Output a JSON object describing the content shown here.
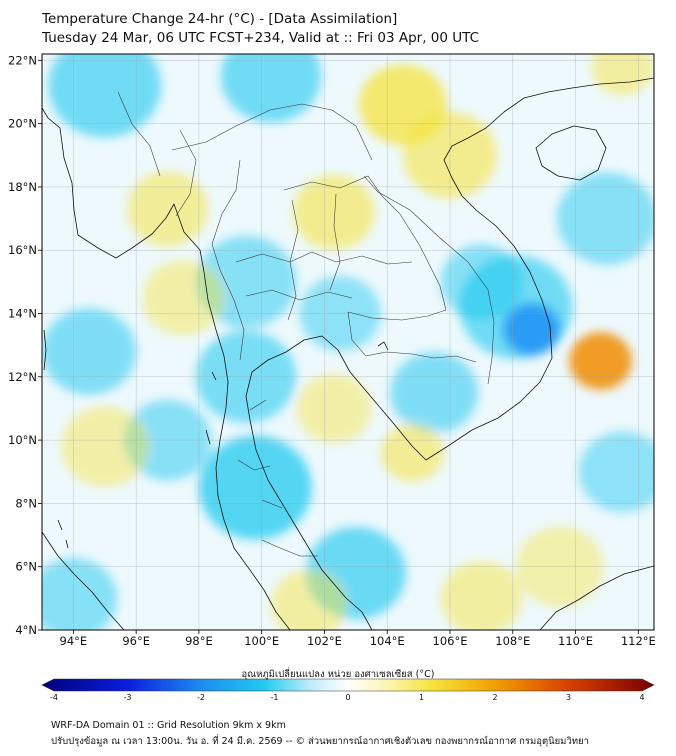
{
  "header": {
    "title_line1": "Temperature Change 24-hr (°C) - [Data Assimilation]",
    "title_line2": "Tuesday 24 Mar, 06 UTC FCST+234, Valid at :: Fri 03 Apr, 00 UTC"
  },
  "map": {
    "lat_labels": [
      "22°N",
      "20°N",
      "18°N",
      "16°N",
      "14°N",
      "12°N",
      "10°N",
      "8°N",
      "6°N",
      "4°N"
    ],
    "lon_labels": [
      "94°E",
      "96°E",
      "98°E",
      "100°E",
      "102°E",
      "104°E",
      "106°E",
      "108°E",
      "110°E",
      "112°E"
    ],
    "extent": {
      "lon_min": 93.0,
      "lon_max": 112.5,
      "lat_min": 4.0,
      "lat_max": 22.2
    },
    "anomalies": [
      {
        "lon": 108.6,
        "lat": 13.5,
        "value": -2.0,
        "r": 0.9
      },
      {
        "lon": 108.1,
        "lat": 14.2,
        "value": -1.1,
        "r": 1.8
      },
      {
        "lon": 99.8,
        "lat": 8.5,
        "value": -1.5,
        "r": 1.8
      },
      {
        "lon": 99.5,
        "lat": 12.0,
        "value": -1.0,
        "r": 1.6
      },
      {
        "lon": 99.5,
        "lat": 15.0,
        "value": -0.8,
        "r": 1.6
      },
      {
        "lon": 95.0,
        "lat": 21.2,
        "value": -1.1,
        "r": 1.8
      },
      {
        "lon": 100.3,
        "lat": 21.5,
        "value": -1.1,
        "r": 1.6
      },
      {
        "lon": 94.5,
        "lat": 12.8,
        "value": -0.9,
        "r": 1.5
      },
      {
        "lon": 97.0,
        "lat": 10.0,
        "value": -0.8,
        "r": 1.4
      },
      {
        "lon": 103.0,
        "lat": 5.8,
        "value": -1.2,
        "r": 1.6
      },
      {
        "lon": 102.5,
        "lat": 14.0,
        "value": -0.7,
        "r": 1.3
      },
      {
        "lon": 105.5,
        "lat": 11.5,
        "value": -0.9,
        "r": 1.4
      },
      {
        "lon": 111.0,
        "lat": 17.0,
        "value": -0.8,
        "r": 1.6
      },
      {
        "lon": 111.5,
        "lat": 9.0,
        "value": -0.7,
        "r": 1.4
      },
      {
        "lon": 107.0,
        "lat": 15.0,
        "value": -0.8,
        "r": 1.3
      },
      {
        "lon": 94.0,
        "lat": 5.0,
        "value": -0.8,
        "r": 1.4
      },
      {
        "lon": 110.8,
        "lat": 12.5,
        "value": 2.0,
        "r": 1.0
      },
      {
        "lon": 104.5,
        "lat": 20.6,
        "value": 1.5,
        "r": 1.4
      },
      {
        "lon": 106.0,
        "lat": 19.0,
        "value": 1.0,
        "r": 1.5
      },
      {
        "lon": 102.3,
        "lat": 17.2,
        "value": 1.0,
        "r": 1.3
      },
      {
        "lon": 97.0,
        "lat": 17.3,
        "value": 0.8,
        "r": 1.3
      },
      {
        "lon": 104.8,
        "lat": 9.6,
        "value": 0.9,
        "r": 1.0
      },
      {
        "lon": 102.3,
        "lat": 11.0,
        "value": 0.6,
        "r": 1.2
      },
      {
        "lon": 97.5,
        "lat": 14.5,
        "value": 0.6,
        "r": 1.3
      },
      {
        "lon": 95.0,
        "lat": 9.8,
        "value": 0.6,
        "r": 1.4
      },
      {
        "lon": 101.5,
        "lat": 4.8,
        "value": 0.7,
        "r": 1.2
      },
      {
        "lon": 107.0,
        "lat": 5.0,
        "value": 0.7,
        "r": 1.3
      },
      {
        "lon": 109.5,
        "lat": 6.0,
        "value": 0.5,
        "r": 1.4
      },
      {
        "lon": 111.5,
        "lat": 21.8,
        "value": 0.7,
        "r": 1.0
      }
    ]
  },
  "colorbar": {
    "label": "อุณหภูมิเปลี่ยนแปลง หน่วย องศาเซลเซียส (°C)",
    "ticks": [
      "-4",
      "-3",
      "-2",
      "-1",
      "0",
      "1",
      "2",
      "3",
      "4"
    ],
    "min": -4,
    "max": 4,
    "colors": {
      "deep_cold": "#00007a",
      "cold": "#1a3cff",
      "cyan": "#1ec8f0",
      "neutral": "#ffffff",
      "yellow": "#f6e23a",
      "orange": "#f08c00",
      "deep_warm": "#7a0000"
    }
  },
  "footer": {
    "line1": "WRF-DA Domain 01 :: Grid Resolution 9km x 9km",
    "line2": "ปรับปรุงข้อมูล ณ เวลา 13:00น. วัน อ. ที่ 24 มี.ค. 2569 -- © ส่วนพยากรณ์อากาศเชิงตัวเลข กองพยากรณ์อากาศ กรมอุตุนิยมวิทยา"
  }
}
